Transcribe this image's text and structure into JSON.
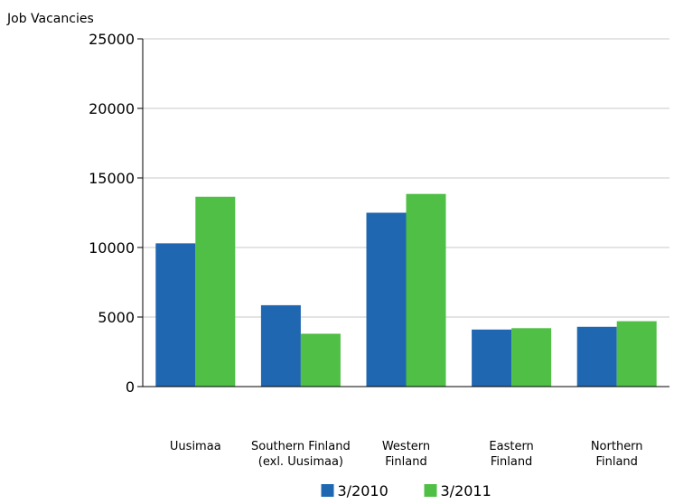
{
  "chart_data": {
    "type": "bar",
    "title": "",
    "ylabel": "Job Vacancies",
    "xlabel": "",
    "ylim": [
      0,
      25000
    ],
    "yticks": [
      0,
      5000,
      10000,
      15000,
      20000,
      25000
    ],
    "grid": true,
    "legend_position": "bottom",
    "categories": [
      [
        "Uusimaa"
      ],
      [
        "Southern Finland",
        "(exl. Uusimaa)"
      ],
      [
        "Western",
        "Finland"
      ],
      [
        "Eastern",
        "Finland"
      ],
      [
        "Northern",
        "Finland"
      ]
    ],
    "series": [
      {
        "name": "3/2010",
        "color": "#1f67b1",
        "values": [
          10300,
          5850,
          12500,
          4100,
          4300
        ]
      },
      {
        "name": "3/2011",
        "color": "#4fbf45",
        "values": [
          13650,
          3800,
          13850,
          4200,
          4700
        ]
      }
    ]
  }
}
